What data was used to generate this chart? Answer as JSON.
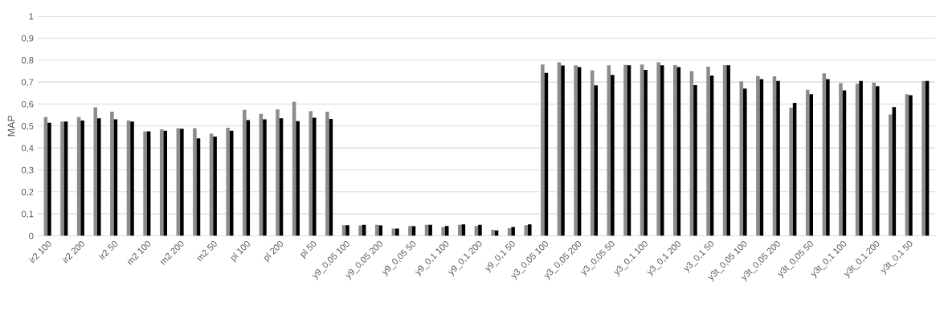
{
  "chart_data": {
    "type": "bar",
    "ylabel": "MAP",
    "categories": [
      "ir2 100",
      null,
      "ir2 200",
      null,
      "ir2 50",
      null,
      "m2 100",
      null,
      "m2 200",
      null,
      "m2 50",
      null,
      "pl 100",
      null,
      "pl 200",
      null,
      "pl 50",
      null,
      "y9_0,05 100",
      null,
      "y9_0,05 200",
      null,
      "y9_0,05 50",
      null,
      "y9_0,1 100",
      null,
      "y9_0,1 200",
      null,
      "y9_0,1 50",
      null,
      "y3_0,05 100",
      null,
      "y3_0,05 200",
      null,
      "y3_0,05 50",
      null,
      "y3_0,1 100",
      null,
      "y3_0,1 200",
      null,
      "y3_0,1 50",
      null,
      "y3t_0,05 100",
      null,
      "y3t_0,05 200",
      null,
      "y3t_0,05 50",
      null,
      "y3t_0,1 100",
      null,
      "y3t_0,1 200",
      null,
      "y3t_0,1 50",
      null
    ],
    "series": [
      {
        "color": "#8c8c8c",
        "values": [
          0.54,
          0.52,
          0.54,
          0.585,
          0.565,
          0.525,
          0.475,
          0.485,
          0.49,
          0.49,
          0.465,
          0.492,
          0.573,
          0.555,
          0.575,
          0.61,
          0.568,
          0.565,
          0.048,
          0.047,
          0.05,
          0.033,
          0.045,
          0.05,
          0.04,
          0.05,
          0.045,
          0.027,
          0.035,
          0.048,
          0.78,
          0.79,
          0.776,
          0.753,
          0.776,
          0.778,
          0.78,
          0.79,
          0.777,
          0.75,
          0.77,
          0.777,
          0.703,
          0.728,
          0.726,
          0.583,
          0.665,
          0.74,
          0.695,
          0.692,
          0.698,
          0.552,
          0.645,
          0.705
        ]
      },
      {
        "color": "#000000",
        "values": [
          0.515,
          0.52,
          0.525,
          0.535,
          0.53,
          0.52,
          0.475,
          0.478,
          0.487,
          0.443,
          0.452,
          0.478,
          0.527,
          0.53,
          0.535,
          0.522,
          0.538,
          0.532,
          0.048,
          0.05,
          0.047,
          0.033,
          0.044,
          0.05,
          0.045,
          0.052,
          0.05,
          0.025,
          0.04,
          0.052,
          0.742,
          0.775,
          0.768,
          0.685,
          0.732,
          0.776,
          0.755,
          0.776,
          0.768,
          0.686,
          0.73,
          0.776,
          0.67,
          0.713,
          0.705,
          0.605,
          0.645,
          0.713,
          0.662,
          0.705,
          0.681,
          0.586,
          0.64,
          0.705
        ]
      }
    ],
    "ylim": [
      0,
      1
    ],
    "yticks": [
      0,
      {
        "value": 0.1,
        "label": "0,1"
      },
      {
        "value": 0.2,
        "label": "0,2"
      },
      {
        "value": 0.3,
        "label": "0,3"
      },
      {
        "value": 0.4,
        "label": "0,4"
      },
      {
        "value": 0.5,
        "label": "0,5"
      },
      {
        "value": 0.6,
        "label": "0,6"
      },
      {
        "value": 0.7,
        "label": "0,7"
      },
      {
        "value": 0.8,
        "label": "0,8"
      },
      {
        "value": 0.9,
        "label": "0,9"
      },
      1
    ],
    "grid": "y"
  }
}
